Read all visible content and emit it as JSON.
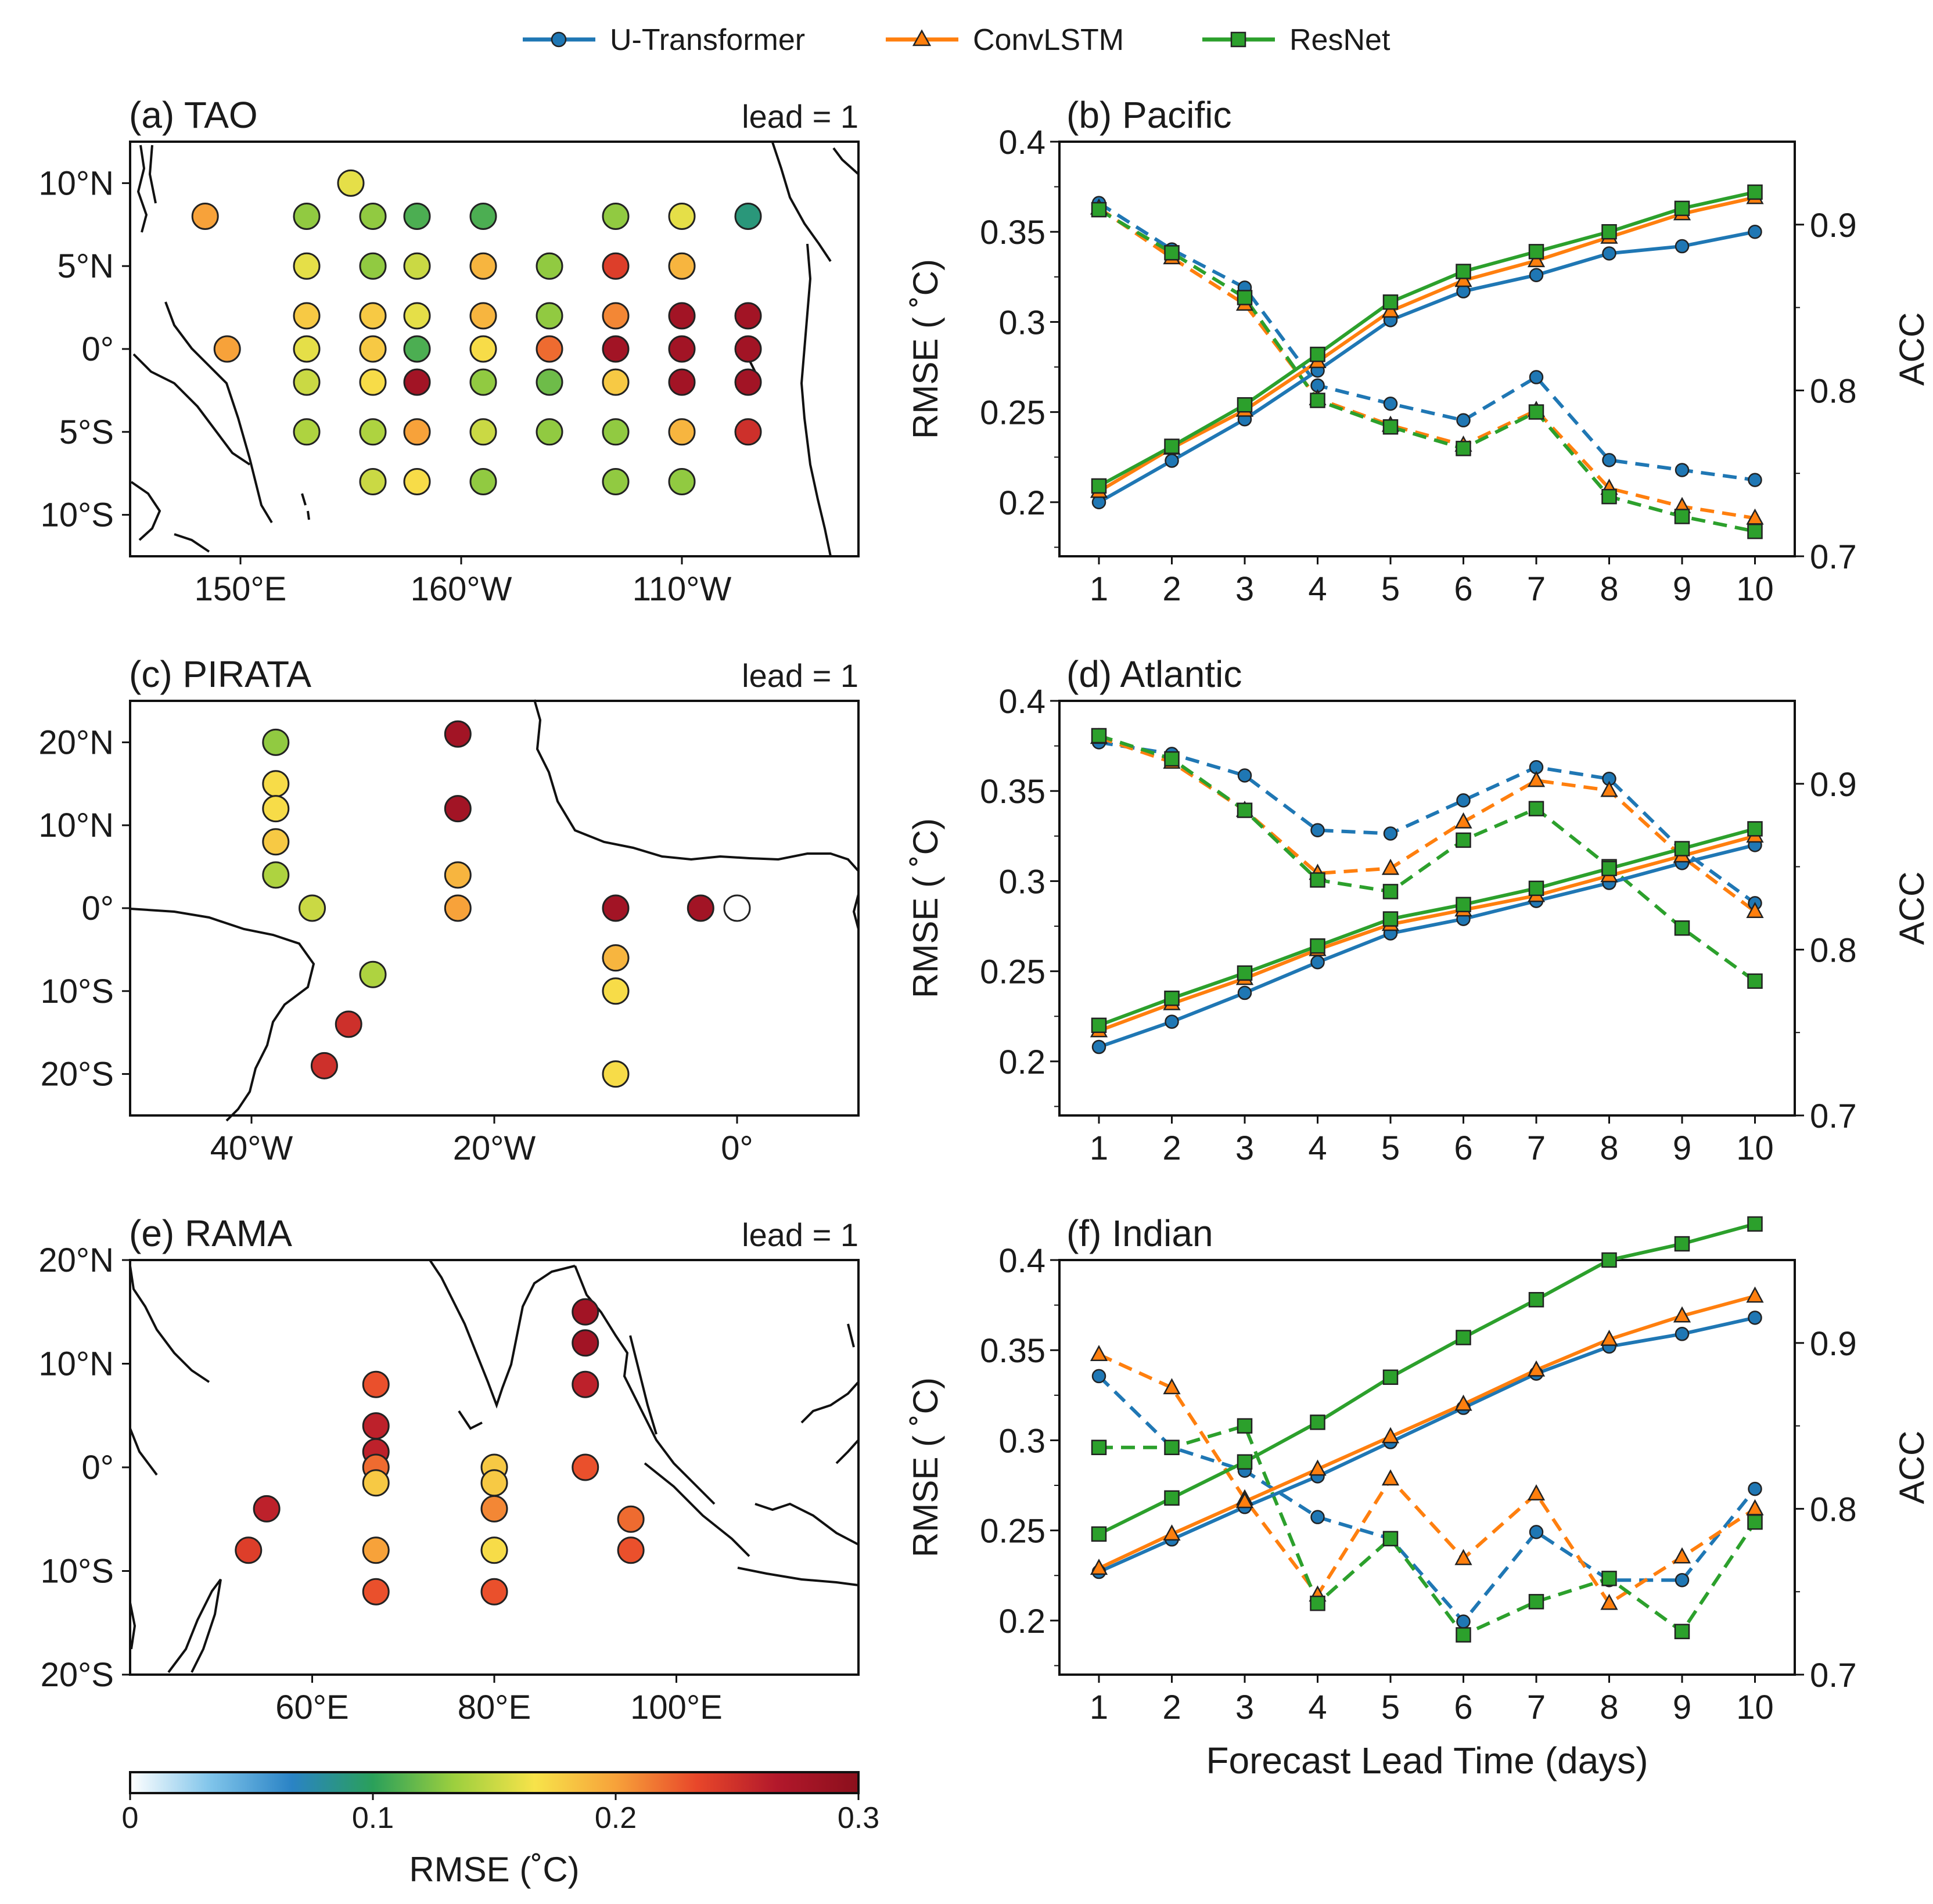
{
  "legend": {
    "entries": [
      {
        "label": "U-Transformer",
        "color": "#1f77b4",
        "marker": "circle"
      },
      {
        "label": "ConvLSTM",
        "color": "#ff7f0e",
        "marker": "triangle"
      },
      {
        "label": "ResNet",
        "color": "#2ca02c",
        "marker": "square"
      }
    ]
  },
  "colorbar": {
    "label": "RMSE (˚C)",
    "ticks": [
      "0",
      "0.1",
      "0.2",
      "0.3"
    ],
    "range": [
      0,
      0.3
    ],
    "stops": [
      "#ffffff",
      "#7fc4ea",
      "#2a83c5",
      "#2aa05a",
      "#9ccf3e",
      "#f7e34a",
      "#f7a23a",
      "#e8472a",
      "#b2182b",
      "#8b0f1c"
    ]
  },
  "chart_data": [
    {
      "type": "map",
      "panel": "(a) TAO",
      "annotation": "lead = 1",
      "xlim": [
        125,
        290
      ],
      "ylim": [
        -12.5,
        12.5
      ],
      "xticks": [
        {
          "v": 150,
          "label": "150°E"
        },
        {
          "v": 200,
          "label": "160°W"
        },
        {
          "v": 250,
          "label": "110°W"
        }
      ],
      "yticks": [
        {
          "v": 10,
          "label": "10°N"
        },
        {
          "v": 5,
          "label": "5°N"
        },
        {
          "v": 0,
          "label": "0°"
        },
        {
          "v": -5,
          "label": "5°S"
        },
        {
          "v": -10,
          "label": "10°S"
        }
      ],
      "stations": [
        [
          142,
          8,
          0.2
        ],
        [
          175,
          10,
          0.16
        ],
        [
          165,
          8,
          0.13
        ],
        [
          180,
          8,
          0.13
        ],
        [
          190,
          8,
          0.11
        ],
        [
          205,
          8,
          0.11
        ],
        [
          235,
          8,
          0.13
        ],
        [
          250,
          8,
          0.16
        ],
        [
          265,
          8,
          0.09
        ],
        [
          165,
          5,
          0.16
        ],
        [
          180,
          5,
          0.13
        ],
        [
          190,
          5,
          0.15
        ],
        [
          205,
          5,
          0.19
        ],
        [
          220,
          5,
          0.13
        ],
        [
          235,
          5,
          0.24
        ],
        [
          250,
          5,
          0.19
        ],
        [
          165,
          2,
          0.18
        ],
        [
          180,
          2,
          0.18
        ],
        [
          190,
          2,
          0.16
        ],
        [
          205,
          2,
          0.19
        ],
        [
          220,
          2,
          0.13
        ],
        [
          235,
          2,
          0.21
        ],
        [
          250,
          2,
          0.28
        ],
        [
          265,
          2,
          0.28
        ],
        [
          147,
          0,
          0.2
        ],
        [
          165,
          0,
          0.16
        ],
        [
          180,
          0,
          0.18
        ],
        [
          190,
          0,
          0.11
        ],
        [
          205,
          0,
          0.17
        ],
        [
          220,
          0,
          0.22
        ],
        [
          235,
          0,
          0.28
        ],
        [
          250,
          0,
          0.28
        ],
        [
          265,
          0,
          0.28
        ],
        [
          165,
          -2,
          0.15
        ],
        [
          180,
          -2,
          0.17
        ],
        [
          190,
          -2,
          0.28
        ],
        [
          205,
          -2,
          0.13
        ],
        [
          220,
          -2,
          0.12
        ],
        [
          235,
          -2,
          0.18
        ],
        [
          250,
          -2,
          0.28
        ],
        [
          265,
          -2,
          0.28
        ],
        [
          165,
          -5,
          0.14
        ],
        [
          180,
          -5,
          0.14
        ],
        [
          190,
          -5,
          0.2
        ],
        [
          205,
          -5,
          0.15
        ],
        [
          220,
          -5,
          0.13
        ],
        [
          235,
          -5,
          0.13
        ],
        [
          250,
          -5,
          0.19
        ],
        [
          265,
          -5,
          0.25
        ],
        [
          180,
          -8,
          0.15
        ],
        [
          190,
          -8,
          0.17
        ],
        [
          205,
          -8,
          0.13
        ],
        [
          235,
          -8,
          0.13
        ],
        [
          250,
          -8,
          0.13
        ]
      ]
    },
    {
      "type": "line",
      "panel": "(b) Pacific",
      "x": [
        1,
        2,
        3,
        4,
        5,
        6,
        7,
        8,
        9,
        10
      ],
      "ylabel": "RMSE ( ˚C)",
      "y2label": "ACC",
      "ylim": [
        0.17,
        0.4
      ],
      "y2lim": [
        0.7,
        0.95
      ],
      "yticks": [
        "0.4",
        "0.35",
        "0.3",
        "0.25",
        "0.2"
      ],
      "y2ticks": [
        "0.9",
        "0.8",
        "0.7"
      ],
      "xlabel": "",
      "rmse": [
        {
          "name": "U-Transformer",
          "values": [
            0.2,
            0.223,
            0.246,
            0.273,
            0.301,
            0.317,
            0.326,
            0.338,
            0.342,
            0.35
          ]
        },
        {
          "name": "ConvLSTM",
          "values": [
            0.206,
            0.23,
            0.251,
            0.278,
            0.306,
            0.323,
            0.334,
            0.347,
            0.36,
            0.369
          ]
        },
        {
          "name": "ResNet",
          "values": [
            0.209,
            0.231,
            0.254,
            0.282,
            0.311,
            0.328,
            0.339,
            0.35,
            0.363,
            0.372
          ]
        }
      ],
      "acc": [
        {
          "name": "U-Transformer",
          "values": [
            0.913,
            0.885,
            0.862,
            0.803,
            0.792,
            0.782,
            0.808,
            0.758,
            0.752,
            0.746
          ]
        },
        {
          "name": "ConvLSTM",
          "values": [
            0.91,
            0.88,
            0.852,
            0.795,
            0.779,
            0.767,
            0.788,
            0.741,
            0.73,
            0.723
          ]
        },
        {
          "name": "ResNet",
          "values": [
            0.909,
            0.883,
            0.856,
            0.794,
            0.778,
            0.765,
            0.787,
            0.736,
            0.724,
            0.715
          ]
        }
      ]
    },
    {
      "type": "map",
      "panel": "(c) PIRATA",
      "annotation": "lead = 1",
      "xlim": [
        -50,
        10
      ],
      "ylim": [
        -25,
        25
      ],
      "xticks": [
        {
          "v": -40,
          "label": "40°W"
        },
        {
          "v": -20,
          "label": "20°W"
        },
        {
          "v": 0,
          "label": "0°"
        }
      ],
      "yticks": [
        {
          "v": 20,
          "label": "20°N"
        },
        {
          "v": 10,
          "label": "10°N"
        },
        {
          "v": 0,
          "label": "0°"
        },
        {
          "v": -10,
          "label": "10°S"
        },
        {
          "v": -20,
          "label": "20°S"
        }
      ],
      "stations": [
        [
          -38,
          20,
          0.13
        ],
        [
          -38,
          15,
          0.17
        ],
        [
          -38,
          12,
          0.17
        ],
        [
          -38,
          8,
          0.18
        ],
        [
          -38,
          4,
          0.14
        ],
        [
          -35,
          0,
          0.15
        ],
        [
          -30,
          -8,
          0.14
        ],
        [
          -32,
          -14,
          0.25
        ],
        [
          -34,
          -19,
          0.25
        ],
        [
          -23,
          21,
          0.28
        ],
        [
          -23,
          12,
          0.28
        ],
        [
          -23,
          4,
          0.19
        ],
        [
          -23,
          0,
          0.2
        ],
        [
          -10,
          0,
          0.28
        ],
        [
          -10,
          -6,
          0.19
        ],
        [
          -10,
          -10,
          0.17
        ],
        [
          -10,
          -20,
          0.17
        ],
        [
          -3,
          0,
          0.28
        ],
        [
          0,
          0,
          0.0
        ]
      ]
    },
    {
      "type": "line",
      "panel": "(d) Atlantic",
      "x": [
        1,
        2,
        3,
        4,
        5,
        6,
        7,
        8,
        9,
        10
      ],
      "ylabel": "RMSE ( ˚C)",
      "y2label": "ACC",
      "ylim": [
        0.17,
        0.4
      ],
      "y2lim": [
        0.7,
        0.95
      ],
      "yticks": [
        "0.4",
        "0.35",
        "0.3",
        "0.25",
        "0.2"
      ],
      "y2ticks": [
        "0.9",
        "0.8",
        "0.7"
      ],
      "xlabel": "",
      "rmse": [
        {
          "name": "U-Transformer",
          "values": [
            0.208,
            0.222,
            0.238,
            0.255,
            0.271,
            0.279,
            0.289,
            0.299,
            0.31,
            0.32
          ]
        },
        {
          "name": "ConvLSTM",
          "values": [
            0.217,
            0.232,
            0.246,
            0.262,
            0.276,
            0.284,
            0.292,
            0.303,
            0.314,
            0.325
          ]
        },
        {
          "name": "ResNet",
          "values": [
            0.22,
            0.235,
            0.249,
            0.264,
            0.279,
            0.287,
            0.296,
            0.307,
            0.318,
            0.329
          ]
        }
      ],
      "acc": [
        {
          "name": "U-Transformer",
          "values": [
            0.925,
            0.918,
            0.905,
            0.872,
            0.87,
            0.89,
            0.91,
            0.903,
            0.86,
            0.828
          ]
        },
        {
          "name": "ConvLSTM",
          "values": [
            0.928,
            0.913,
            0.884,
            0.846,
            0.849,
            0.877,
            0.902,
            0.896,
            0.856,
            0.823
          ]
        },
        {
          "name": "ResNet",
          "values": [
            0.929,
            0.915,
            0.884,
            0.842,
            0.835,
            0.866,
            0.885,
            0.85,
            0.813,
            0.781
          ]
        }
      ]
    },
    {
      "type": "map",
      "panel": "(e) RAMA",
      "annotation": "lead = 1",
      "xlim": [
        40,
        120
      ],
      "ylim": [
        -20,
        20
      ],
      "xticks": [
        {
          "v": 60,
          "label": "60°E"
        },
        {
          "v": 80,
          "label": "80°E"
        },
        {
          "v": 100,
          "label": "100°E"
        }
      ],
      "yticks": [
        {
          "v": 20,
          "label": "20°N"
        },
        {
          "v": 10,
          "label": "10°N"
        },
        {
          "v": 0,
          "label": "0°"
        },
        {
          "v": -10,
          "label": "10°S"
        },
        {
          "v": -20,
          "label": "20°S"
        }
      ],
      "stations": [
        [
          90,
          15,
          0.28
        ],
        [
          90,
          12,
          0.28
        ],
        [
          90,
          8,
          0.26
        ],
        [
          90,
          0,
          0.23
        ],
        [
          67,
          8,
          0.23
        ],
        [
          67,
          4,
          0.26
        ],
        [
          67,
          1.5,
          0.26
        ],
        [
          67,
          0,
          0.22
        ],
        [
          67,
          -1.5,
          0.18
        ],
        [
          67,
          -8,
          0.2
        ],
        [
          67,
          -12,
          0.23
        ],
        [
          80,
          0,
          0.18
        ],
        [
          80,
          -1.5,
          0.18
        ],
        [
          80,
          -4,
          0.21
        ],
        [
          80,
          -8,
          0.17
        ],
        [
          80,
          -12,
          0.23
        ],
        [
          55,
          -4,
          0.26
        ],
        [
          53,
          -8,
          0.24
        ],
        [
          95,
          -5,
          0.22
        ],
        [
          95,
          -8,
          0.23
        ]
      ]
    },
    {
      "type": "line",
      "panel": "(f) Indian",
      "x": [
        1,
        2,
        3,
        4,
        5,
        6,
        7,
        8,
        9,
        10
      ],
      "xlabel": "Forecast Lead Time (days)",
      "ylabel": "RMSE ( ˚C)",
      "y2label": "ACC",
      "ylim": [
        0.17,
        0.4
      ],
      "y2lim": [
        0.7,
        0.95
      ],
      "yticks": [
        "0.4",
        "0.35",
        "0.3",
        "0.25",
        "0.2"
      ],
      "y2ticks": [
        "0.9",
        "0.8",
        "0.7"
      ],
      "rmse": [
        {
          "name": "U-Transformer",
          "values": [
            0.227,
            0.245,
            0.263,
            0.28,
            0.299,
            0.318,
            0.337,
            0.352,
            0.359,
            0.368
          ]
        },
        {
          "name": "ConvLSTM",
          "values": [
            0.229,
            0.248,
            0.266,
            0.284,
            0.302,
            0.32,
            0.339,
            0.356,
            0.369,
            0.38
          ]
        },
        {
          "name": "ResNet",
          "values": [
            0.248,
            0.268,
            0.288,
            0.31,
            0.335,
            0.357,
            0.378,
            0.4,
            0.409,
            0.42
          ]
        }
      ],
      "acc": [
        {
          "name": "U-Transformer",
          "values": [
            0.88,
            0.837,
            0.823,
            0.795,
            0.782,
            0.732,
            0.786,
            0.757,
            0.757,
            0.812
          ]
        },
        {
          "name": "ConvLSTM",
          "values": [
            0.893,
            0.873,
            0.806,
            0.748,
            0.818,
            0.77,
            0.809,
            0.743,
            0.771,
            0.8
          ]
        },
        {
          "name": "ResNet",
          "values": [
            0.837,
            0.837,
            0.85,
            0.743,
            0.782,
            0.724,
            0.744,
            0.758,
            0.726,
            0.792
          ]
        }
      ]
    }
  ]
}
